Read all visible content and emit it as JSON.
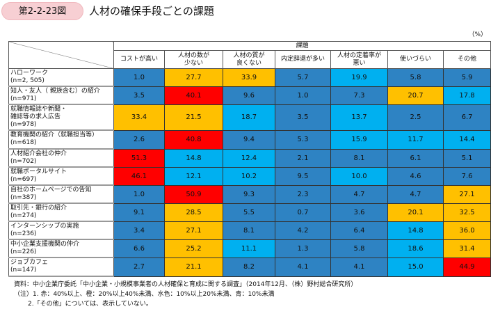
{
  "figure_label": "第2-2-23図",
  "title": "人材の確保手段ごとの課題",
  "unit": "（%）",
  "chart_data": {
    "type": "table",
    "title": "人材の確保手段ごとの課題",
    "group_header": "課題",
    "columns": [
      "コストが高い",
      "人材の数が\n少ない",
      "人材の質が\n良くない",
      "内定辞退が多い",
      "人材の定着率が\n悪い",
      "使いづらい",
      "その他"
    ],
    "rows": [
      {
        "label": "ハローワーク",
        "n": "(n=2, 505)",
        "values": [
          1.0,
          27.7,
          33.9,
          5.7,
          19.9,
          5.8,
          5.9
        ]
      },
      {
        "label": "知人・友人（ 親族含む）の紹介",
        "n": "(n=971)",
        "values": [
          3.5,
          40.1,
          9.6,
          1.0,
          7.3,
          20.7,
          17.8
        ]
      },
      {
        "label": "就職情報誌や新聞・\n雑誌等の求人広告",
        "n": "(n=978)",
        "values": [
          33.4,
          21.5,
          18.7,
          3.5,
          13.7,
          2.5,
          6.7
        ]
      },
      {
        "label": "教育機関の紹介（就職担当等）",
        "n": "(n=618)",
        "values": [
          2.6,
          40.8,
          9.4,
          5.3,
          15.9,
          11.7,
          14.4
        ]
      },
      {
        "label": "人材紹介会社の仲介",
        "n": "(n=702)",
        "values": [
          51.3,
          14.8,
          12.4,
          2.1,
          8.1,
          6.1,
          5.1
        ]
      },
      {
        "label": "就職ポータルサイト",
        "n": "(n=697)",
        "values": [
          46.1,
          12.1,
          10.2,
          9.5,
          10.0,
          4.6,
          7.6
        ]
      },
      {
        "label": "自社のホームページでの告知",
        "n": "(n=387)",
        "values": [
          1.0,
          50.9,
          9.3,
          2.3,
          4.7,
          4.7,
          27.1
        ]
      },
      {
        "label": "取引先・銀行の紹介",
        "n": "(n=274)",
        "values": [
          9.1,
          28.5,
          5.5,
          0.7,
          3.6,
          20.1,
          32.5
        ]
      },
      {
        "label": "インターンシップの実施",
        "n": "(n=236)",
        "values": [
          3.4,
          27.1,
          8.1,
          4.2,
          6.4,
          14.8,
          36.0
        ]
      },
      {
        "label": "中小企業支援機関の仲介",
        "n": "(n=226)",
        "values": [
          6.6,
          25.2,
          11.1,
          1.3,
          5.8,
          18.6,
          31.4
        ]
      },
      {
        "label": "ジョブカフェ",
        "n": "(n=147)",
        "values": [
          2.7,
          21.1,
          8.2,
          4.1,
          4.1,
          15.0,
          44.9
        ]
      }
    ],
    "color_scale": {
      "red": "#ff0000",
      "orange": "#ffc000",
      "lightblue": "#00b0f0",
      "blue": "#2e83c3"
    },
    "thresholds": [
      10,
      20,
      40
    ]
  },
  "notes": {
    "source": "資料：中小企業庁委託「中小企業・小規模事業者の人材確保と育成に関する調査」（2014年12月、（株）野村総合研究所）",
    "note1": "（注）1. 赤：40%以上、橙：20%以上40%未満、水色：10%以上20%未満、青：10%未満",
    "note2": "2.「その他」については、表示していない。"
  }
}
